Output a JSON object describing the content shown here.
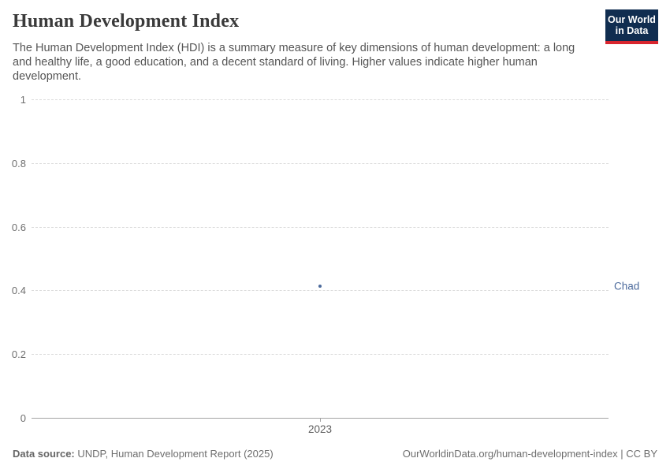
{
  "header": {
    "title": "Human Development Index",
    "subtitle": "The Human Development Index (HDI) is a summary measure of key dimensions of human development: a long and healthy life, a good education, and a decent standard of living. Higher values indicate higher human development.",
    "logo": {
      "line1": "Our World",
      "line2": "in Data",
      "bg_color": "#102D50",
      "accent_color": "#D8252E"
    }
  },
  "chart_data": {
    "type": "scatter",
    "title": "Human Development Index",
    "x": [
      2023
    ],
    "xtick_labels": [
      "2023"
    ],
    "series": [
      {
        "name": "Chad",
        "values": [
          0.416
        ],
        "color": "#4C6A9C"
      }
    ],
    "xlabel": "",
    "ylabel": "",
    "ylim": [
      0,
      1
    ],
    "yticks": [
      0,
      0.2,
      0.4,
      0.6,
      0.8,
      1
    ],
    "ytick_labels": [
      "0",
      "0.2",
      "0.4",
      "0.6",
      "0.8",
      "1"
    ],
    "grid": "horizontal dashed, solid baseline at 0",
    "legend_position": "right-of-point entity label"
  },
  "footer": {
    "source_label": "Data source:",
    "source_text": " UNDP, Human Development Report (2025)",
    "link_text": "OurWorldinData.org/human-development-index",
    "separator": " | ",
    "license_text": "CC BY"
  }
}
